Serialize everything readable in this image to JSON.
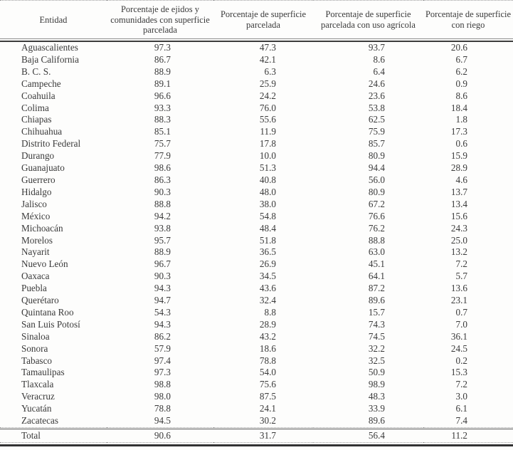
{
  "table": {
    "columns": [
      "Entidad",
      "Porcentaje de ejidos y comunidades con superficie parcelada",
      "Porcentaje de superficie parcelada",
      "Porcentaje de superficie parcelada con uso agrícola",
      "Porcentaje de superficie con riego"
    ],
    "rows": [
      [
        "Aguascalientes",
        "97.3",
        "47.3",
        "93.7",
        "20.6"
      ],
      [
        "Baja California",
        "86.7",
        "42.1",
        "8.6",
        "6.7"
      ],
      [
        "B. C. S.",
        "88.9",
        "6.3",
        "6.4",
        "6.2"
      ],
      [
        "Campeche",
        "89.1",
        "25.9",
        "24.6",
        "0.9"
      ],
      [
        "Coahuila",
        "96.6",
        "24.2",
        "23.6",
        "8.6"
      ],
      [
        "Colima",
        "93.3",
        "76.0",
        "53.8",
        "18.4"
      ],
      [
        "Chiapas",
        "88.3",
        "55.6",
        "62.5",
        "1.8"
      ],
      [
        "Chihuahua",
        "85.1",
        "11.9",
        "75.9",
        "17.3"
      ],
      [
        "Distrito Federal",
        "75.7",
        "17.8",
        "85.7",
        "0.6"
      ],
      [
        "Durango",
        "77.9",
        "10.0",
        "80.9",
        "15.9"
      ],
      [
        "Guanajuato",
        "98.6",
        "51.3",
        "94.4",
        "28.9"
      ],
      [
        "Guerrero",
        "86.3",
        "40.8",
        "56.0",
        "4.6"
      ],
      [
        "Hidalgo",
        "90.3",
        "48.0",
        "80.9",
        "13.7"
      ],
      [
        "Jalisco",
        "88.8",
        "38.0",
        "67.2",
        "13.4"
      ],
      [
        "México",
        "94.2",
        "54.8",
        "76.6",
        "15.6"
      ],
      [
        "Michoacán",
        "93.8",
        "48.4",
        "76.2",
        "24.3"
      ],
      [
        "Morelos",
        "95.7",
        "51.8",
        "88.8",
        "25.0"
      ],
      [
        "Nayarit",
        "88.9",
        "36.5",
        "63.0",
        "13.2"
      ],
      [
        "Nuevo León",
        "96.7",
        "26.9",
        "45.1",
        "7.2"
      ],
      [
        "Oaxaca",
        "90.3",
        "34.5",
        "64.1",
        "5.7"
      ],
      [
        "Puebla",
        "94.3",
        "43.6",
        "87.2",
        "13.6"
      ],
      [
        "Querétaro",
        "94.7",
        "32.4",
        "89.6",
        "23.1"
      ],
      [
        "Quintana Roo",
        "54.3",
        "8.8",
        "15.7",
        "0.7"
      ],
      [
        "San Luis Potosí",
        "94.3",
        "28.9",
        "74.3",
        "7.0"
      ],
      [
        "Sinaloa",
        "86.2",
        "43.2",
        "74.5",
        "36.1"
      ],
      [
        "Sonora",
        "57.9",
        "18.6",
        "32.2",
        "24.5"
      ],
      [
        "Tabasco",
        "97.4",
        "78.8",
        "32.5",
        "0.2"
      ],
      [
        "Tamaulipas",
        "97.3",
        "54.0",
        "50.9",
        "15.3"
      ],
      [
        "Tlaxcala",
        "98.8",
        "75.6",
        "98.9",
        "7.2"
      ],
      [
        "Veracruz",
        "98.0",
        "87.5",
        "48.3",
        "3.0"
      ],
      [
        "Yucatán",
        "78.8",
        "24.1",
        "33.9",
        "6.1"
      ],
      [
        "Zacatecas",
        "94.5",
        "30.2",
        "89.6",
        "7.4"
      ]
    ],
    "total": [
      "Total",
      "90.6",
      "31.7",
      "56.4",
      "11.2"
    ]
  }
}
